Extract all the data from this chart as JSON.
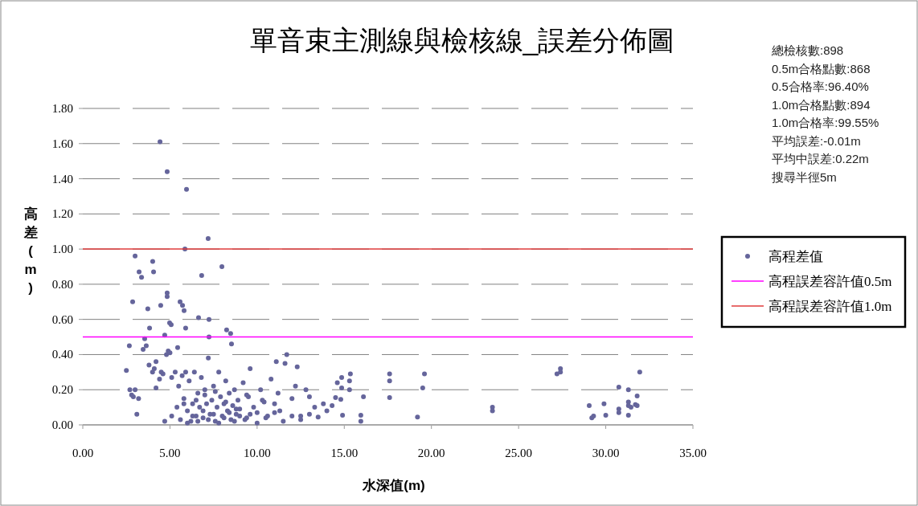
{
  "chart_data": {
    "type": "scatter",
    "title": "單音束主測線與檢核線_誤差分佈圖",
    "xlabel": "水深值(m)",
    "ylabel": "高差(m)",
    "annotations": [
      "總檢核數:898",
      "0.5m合格點數:868",
      "0.5合格率:96.40%",
      "1.0m合格點數:894",
      "1.0m合格率:99.55%",
      "平均誤差:-0.01m",
      "平均中誤差:0.22m",
      "搜尋半徑5m"
    ],
    "xlim": [
      0,
      35
    ],
    "ylim": [
      0,
      1.8
    ],
    "xticks": [
      {
        "value": 0,
        "label": "0.00"
      },
      {
        "value": 5,
        "label": "5.00"
      },
      {
        "value": 10,
        "label": "10.00"
      },
      {
        "value": 15,
        "label": "15.00"
      },
      {
        "value": 20,
        "label": "20.00"
      },
      {
        "value": 25,
        "label": "25.00"
      },
      {
        "value": 30,
        "label": "30.00"
      },
      {
        "value": 35,
        "label": "35.00"
      }
    ],
    "yticks": [
      {
        "value": 0,
        "label": "0.00"
      },
      {
        "value": 0.2,
        "label": "0.20"
      },
      {
        "value": 0.4,
        "label": "0.40"
      },
      {
        "value": 0.6,
        "label": "0.60"
      },
      {
        "value": 0.8,
        "label": "0.80"
      },
      {
        "value": 1.0,
        "label": "1.00"
      },
      {
        "value": 1.2,
        "label": "1.20"
      },
      {
        "value": 1.4,
        "label": "1.40"
      },
      {
        "value": 1.6,
        "label": "1.60"
      },
      {
        "value": 1.8,
        "label": "1.80"
      }
    ],
    "grid": "y",
    "legend": "right",
    "marker": "circle",
    "ref_lines": [
      {
        "axis": "y",
        "value": 0.5,
        "label": "高程誤差容許值0.5m",
        "color": "#ff00ff"
      },
      {
        "axis": "y",
        "value": 1.0,
        "label": "高程誤差容許值1.0m",
        "color": "#e03c3c"
      }
    ],
    "series": [
      {
        "name": "高程差值",
        "color": "#65659b",
        "x": [
          4.43,
          4.84,
          5.95,
          7.19,
          5.86,
          7.98,
          3.0,
          4.01,
          3.23,
          3.37,
          4.06,
          6.82,
          4.84,
          4.84,
          2.86,
          3.73,
          4.47,
          5.58,
          5.72,
          5.81,
          6.64,
          7.24,
          8.25,
          8.48,
          4.98,
          5.07,
          5.9,
          4.7,
          3.55,
          3.83,
          2.67,
          3.64,
          3.46,
          5.44,
          7.24,
          8.53,
          2.5,
          2.7,
          2.8,
          2.9,
          3.0,
          3.1,
          3.2,
          3.8,
          4.0,
          4.1,
          4.2,
          4.2,
          4.4,
          4.5,
          4.6,
          4.7,
          4.8,
          4.9,
          5.0,
          5.1,
          5.1,
          5.3,
          5.4,
          5.5,
          5.6,
          5.7,
          5.8,
          5.9,
          6.0,
          6.1,
          6.2,
          6.3,
          6.4,
          6.5,
          6.6,
          6.7,
          6.8,
          6.9,
          7.0,
          7.1,
          7.2,
          7.3,
          7.4,
          7.5,
          7.6,
          7.7,
          7.8,
          7.9,
          8.0,
          8.1,
          8.2,
          8.3,
          8.4,
          8.5,
          8.6,
          8.7,
          8.8,
          8.9,
          9.0,
          9.2,
          9.4,
          9.5,
          9.6,
          9.8,
          10.0,
          10.2,
          10.4,
          10.6,
          10.8,
          11.0,
          11.1,
          11.3,
          11.6,
          11.7,
          12.0,
          12.3,
          12.5,
          12.8,
          13.0,
          13.3,
          13.5,
          13.8,
          14.0,
          14.3,
          14.5,
          14.6,
          14.8,
          14.85,
          14.85,
          14.9,
          15.3,
          15.3,
          15.35,
          15.95,
          15.95,
          16.1,
          6.0,
          6.3,
          6.6,
          6.9,
          7.2,
          7.5,
          7.8,
          8.1,
          8.4,
          8.7,
          9.0,
          9.3,
          9.6,
          10.0,
          10.5,
          11.0,
          11.5,
          12.0,
          12.5,
          13.0,
          5.8,
          6.5,
          7.0,
          7.6,
          8.2,
          8.8,
          9.4,
          10.3,
          11.2,
          12.2,
          17.6,
          17.6,
          17.6,
          19.6,
          19.5,
          19.2,
          23.5,
          23.5,
          27.4,
          27.2,
          27.4,
          29.05,
          29.2,
          29.3,
          29.9,
          30.0,
          30.75,
          30.75,
          30.75,
          31.3,
          31.3,
          31.3,
          31.45,
          31.3,
          31.8,
          31.7,
          31.95,
          31.8
        ],
        "values": [
          1.61,
          1.44,
          1.34,
          1.06,
          1.0,
          0.9,
          0.96,
          0.93,
          0.87,
          0.84,
          0.87,
          0.85,
          0.75,
          0.73,
          0.7,
          0.66,
          0.68,
          0.7,
          0.68,
          0.65,
          0.61,
          0.6,
          0.54,
          0.52,
          0.58,
          0.57,
          0.55,
          0.51,
          0.49,
          0.55,
          0.45,
          0.45,
          0.43,
          0.44,
          0.5,
          0.46,
          0.31,
          0.2,
          0.17,
          0.16,
          0.2,
          0.06,
          0.15,
          0.34,
          0.3,
          0.32,
          0.21,
          0.36,
          0.26,
          0.3,
          0.29,
          0.02,
          0.4,
          0.42,
          0.41,
          0.27,
          0.05,
          0.3,
          0.1,
          0.22,
          0.03,
          0.28,
          0.15,
          0.3,
          0.08,
          0.25,
          0.02,
          0.12,
          0.3,
          0.05,
          0.18,
          0.1,
          0.27,
          0.04,
          0.2,
          0.12,
          0.38,
          0.06,
          0.14,
          0.22,
          0.02,
          0.1,
          0.3,
          0.16,
          0.05,
          0.12,
          0.25,
          0.08,
          0.18,
          0.03,
          0.11,
          0.2,
          0.06,
          0.14,
          0.09,
          0.24,
          0.04,
          0.16,
          0.32,
          0.1,
          0.07,
          0.2,
          0.13,
          0.05,
          0.26,
          0.12,
          0.36,
          0.08,
          0.35,
          0.4,
          0.15,
          0.33,
          0.05,
          0.2,
          0.16,
          0.1,
          0.045,
          0.12,
          0.08,
          0.11,
          0.155,
          0.24,
          0.145,
          0.21,
          0.27,
          0.055,
          0.25,
          0.2,
          0.29,
          0.055,
          0.02,
          0.16,
          0.01,
          0.05,
          0.02,
          0.08,
          0.03,
          0.06,
          0.01,
          0.04,
          0.07,
          0.02,
          0.05,
          0.03,
          0.06,
          0.01,
          0.04,
          0.07,
          0.02,
          0.05,
          0.03,
          0.06,
          0.12,
          0.14,
          0.17,
          0.19,
          0.13,
          0.09,
          0.17,
          0.14,
          0.18,
          0.22,
          0.29,
          0.25,
          0.155,
          0.29,
          0.21,
          0.045,
          0.1,
          0.08,
          0.32,
          0.29,
          0.3,
          0.11,
          0.04,
          0.05,
          0.12,
          0.055,
          0.215,
          0.09,
          0.07,
          0.2,
          0.13,
          0.11,
          0.1,
          0.055,
          0.165,
          0.115,
          0.3,
          0.11
        ]
      }
    ]
  }
}
